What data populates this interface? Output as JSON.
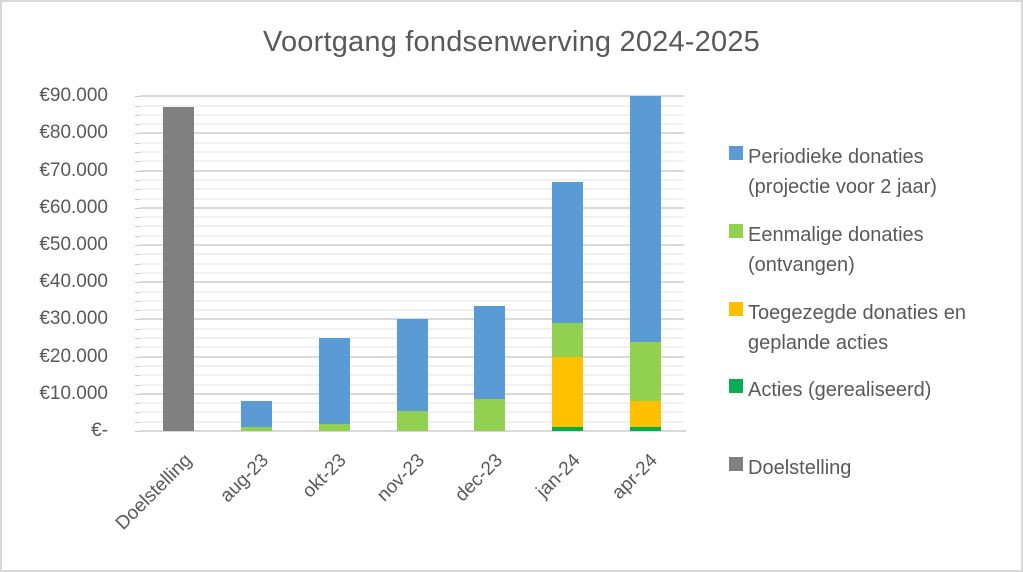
{
  "title": "Voortgang fondsenwerving 2024-2025",
  "y_axis": {
    "tick_labels": [
      "€-",
      "€10.000",
      "€20.000",
      "€30.000",
      "€40.000",
      "€50.000",
      "€60.000",
      "€70.000",
      "€80.000",
      "€90.000"
    ],
    "min": 0,
    "max": 90000,
    "major_unit": 10000,
    "minor_unit": 2500
  },
  "x_axis": {
    "categories": [
      "Doelstelling",
      "aug-23",
      "okt-23",
      "nov-23",
      "dec-23",
      "jan-24",
      "apr-24"
    ]
  },
  "legend": {
    "position": "right",
    "items": [
      {
        "lines": [
          "Periodieke donaties",
          "(projectie voor 2 jaar)"
        ],
        "color": "#5B9BD5"
      },
      {
        "lines": [
          "Eenmalige donaties",
          "(ontvangen)"
        ],
        "color": "#92D050"
      },
      {
        "lines": [
          "Toegezegde donaties en",
          "geplande acties"
        ],
        "color": "#FFC000"
      },
      {
        "lines": [
          "Acties (gerealiseerd)"
        ],
        "color": "#00B050"
      },
      {
        "lines": [
          "Doelstelling"
        ],
        "color": "#808080"
      }
    ]
  },
  "colors": {
    "periodieke_donaties": "#5B9BD5",
    "eenmalige_donaties": "#92D050",
    "toegezegde_donaties": "#FFC000",
    "acties": "#00B050",
    "doelstelling": "#808080",
    "grid_major": "#D9D9D9",
    "grid_minor": "#F1F1F1",
    "text": "#595959"
  },
  "chart_data": {
    "type": "bar",
    "stacked": true,
    "title": "Voortgang fondsenwerving 2024-2025",
    "categories": [
      "Doelstelling",
      "aug-23",
      "okt-23",
      "nov-23",
      "dec-23",
      "jan-24",
      "apr-24"
    ],
    "series": [
      {
        "name": "Doelstelling",
        "color": "#808080",
        "values": [
          87000,
          0,
          0,
          0,
          0,
          0,
          0
        ]
      },
      {
        "name": "Acties (gerealiseerd)",
        "color": "#00B050",
        "values": [
          0,
          0,
          0,
          0,
          0,
          1000,
          1000
        ]
      },
      {
        "name": "Toegezegde donaties en geplande acties",
        "color": "#FFC000",
        "values": [
          0,
          0,
          0,
          0,
          0,
          19000,
          7000
        ]
      },
      {
        "name": "Eenmalige donaties (ontvangen)",
        "color": "#92D050",
        "values": [
          0,
          1000,
          2000,
          5500,
          8500,
          9000,
          16000
        ]
      },
      {
        "name": "Periodieke donaties (projectie voor 2 jaar)",
        "color": "#5B9BD5",
        "values": [
          0,
          7000,
          23000,
          24500,
          25000,
          38000,
          66000
        ]
      }
    ],
    "stack_order": "bottom-to-top as listed",
    "totals": [
      87000,
      8000,
      25000,
      30000,
      33500,
      67000,
      90000
    ],
    "xlabel": "",
    "ylabel": "",
    "ylim": [
      0,
      90000
    ],
    "gridlines": {
      "major_on": true,
      "minor_on": true
    },
    "legend_position": "right"
  }
}
